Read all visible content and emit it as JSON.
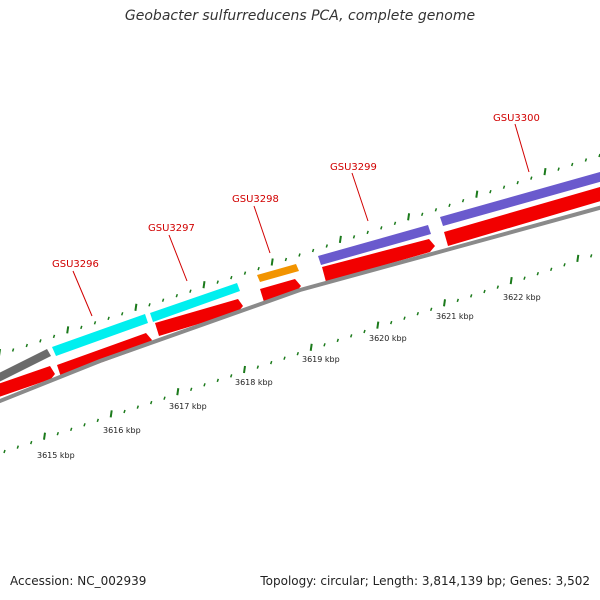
{
  "title": "Geobacter sulfurreducens PCA, complete genome",
  "footer": {
    "accession": "Accession: NC_002939",
    "topology": "Topology: circular; Length: 3,814,139 bp; Genes: 3,502"
  },
  "colors": {
    "gene_label": "#d10000",
    "tick": "#1b7a1b",
    "backbone": "#8a8a8a",
    "cds_red": "#f20000",
    "cyan": "#00f0f0",
    "orange": "#f29400",
    "purple": "#6a5acd",
    "gray": "#6a6a6a"
  },
  "genes": [
    "GSU3296",
    "GSU3297",
    "GSU3298",
    "GSU3299",
    "GSU3300"
  ],
  "kbp_labels": [
    "3615 kbp",
    "3616 kbp",
    "3617 kbp",
    "3618 kbp",
    "3619 kbp",
    "3620 kbp",
    "3621 kbp",
    "3622 kbp"
  ]
}
